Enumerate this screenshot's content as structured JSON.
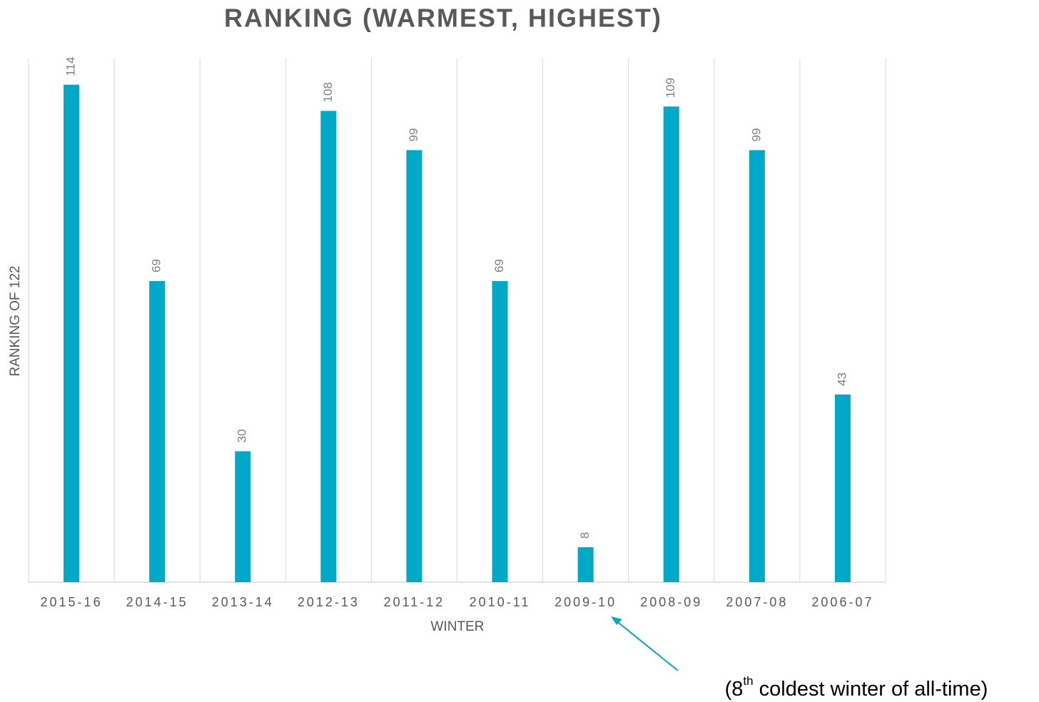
{
  "chart_data": {
    "type": "bar",
    "title": "RANKING (WARMEST, HIGHEST)",
    "x_label": "WINTER",
    "y_label": "RANKING OF 122",
    "categories": [
      "2015-16",
      "2014-15",
      "2013-14",
      "2012-13",
      "2011-12",
      "2010-11",
      "2009-10",
      "2008-09",
      "2007-08",
      "2006-07"
    ],
    "values": [
      114,
      69,
      30,
      108,
      99,
      69,
      8,
      109,
      99,
      43
    ],
    "color": "#00a9c8",
    "ylim": [
      0,
      120
    ],
    "grid": true,
    "annotation": {
      "parts": [
        "(8",
        "th",
        " coldest winter of all-time)"
      ],
      "category_index": 6
    }
  }
}
